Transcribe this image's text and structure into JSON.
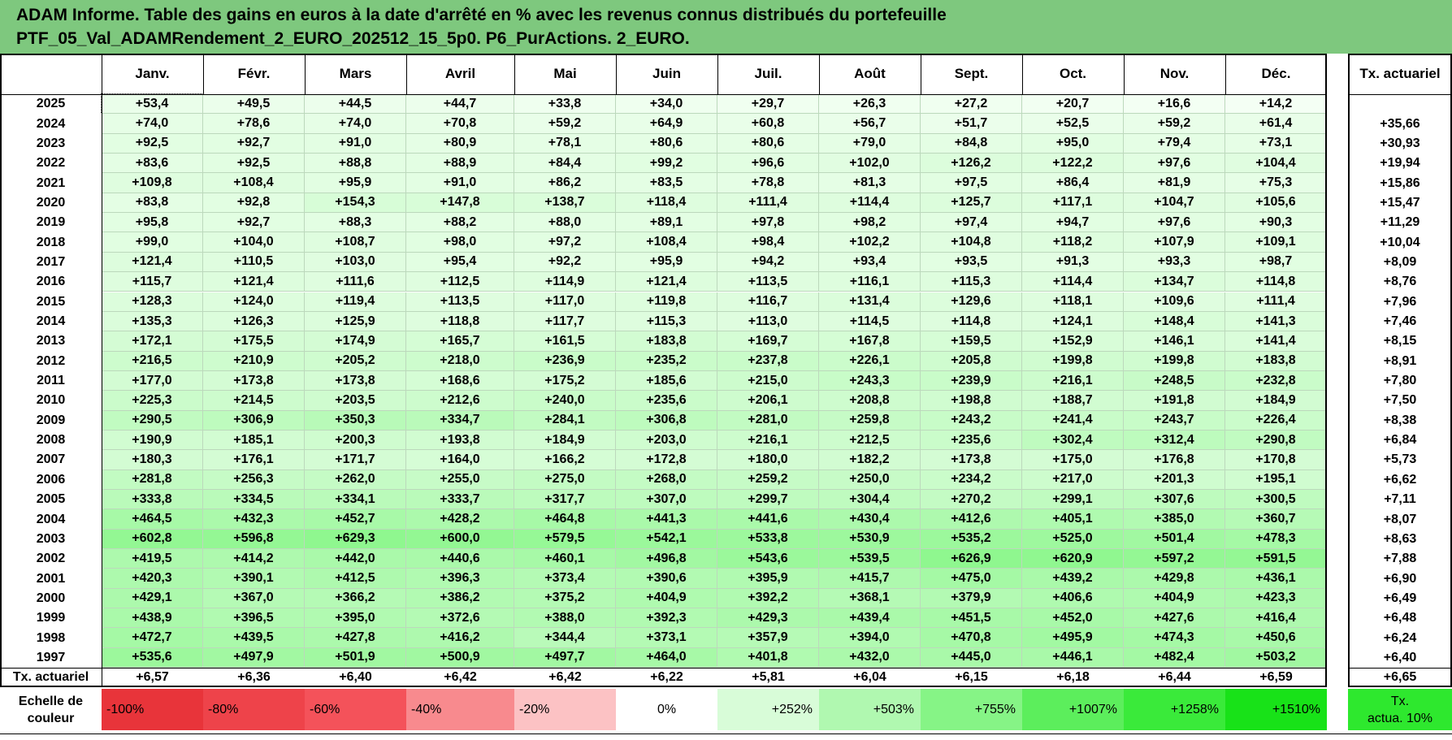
{
  "title": {
    "line1": "ADAM Informe. Table des gains en euros à la date d'arrêté en % avec les revenus connus distribués du portefeuille",
    "line2": "PTF_05_Val_ADAMRendement_2_EURO_202512_15_5p0. P6_PurActions. 2_EURO."
  },
  "table": {
    "months": [
      "Janv.",
      "Févr.",
      "Mars",
      "Avril",
      "Mai",
      "Juin",
      "Juil.",
      "Août",
      "Sept.",
      "Oct.",
      "Nov.",
      "Déc."
    ],
    "actuarial_header": "Tx. actuariel",
    "rows": [
      {
        "year": "2025",
        "values": [
          "+53,4",
          "+49,5",
          "+44,5",
          "+44,7",
          "+33,8",
          "+34,0",
          "+29,7",
          "+26,3",
          "+27,2",
          "+20,7",
          "+16,6",
          "+14,2"
        ],
        "rate": ""
      },
      {
        "year": "2024",
        "values": [
          "+74,0",
          "+78,6",
          "+74,0",
          "+70,8",
          "+59,2",
          "+64,9",
          "+60,8",
          "+56,7",
          "+51,7",
          "+52,5",
          "+59,2",
          "+61,4"
        ],
        "rate": "+35,66"
      },
      {
        "year": "2023",
        "values": [
          "+92,5",
          "+92,7",
          "+91,0",
          "+80,9",
          "+78,1",
          "+80,6",
          "+80,6",
          "+79,0",
          "+84,8",
          "+95,0",
          "+79,4",
          "+73,1"
        ],
        "rate": "+30,93"
      },
      {
        "year": "2022",
        "values": [
          "+83,6",
          "+92,5",
          "+88,8",
          "+88,9",
          "+84,4",
          "+99,2",
          "+96,6",
          "+102,0",
          "+126,2",
          "+122,2",
          "+97,6",
          "+104,4"
        ],
        "rate": "+19,94"
      },
      {
        "year": "2021",
        "values": [
          "+109,8",
          "+108,4",
          "+95,9",
          "+91,0",
          "+86,2",
          "+83,5",
          "+78,8",
          "+81,3",
          "+97,5",
          "+86,4",
          "+81,9",
          "+75,3"
        ],
        "rate": "+15,86"
      },
      {
        "year": "2020",
        "values": [
          "+83,8",
          "+92,8",
          "+154,3",
          "+147,8",
          "+138,7",
          "+118,4",
          "+111,4",
          "+114,4",
          "+125,7",
          "+117,1",
          "+104,7",
          "+105,6"
        ],
        "rate": "+15,47"
      },
      {
        "year": "2019",
        "values": [
          "+95,8",
          "+92,7",
          "+88,3",
          "+88,2",
          "+88,0",
          "+89,1",
          "+97,8",
          "+98,2",
          "+97,4",
          "+94,7",
          "+97,6",
          "+90,3"
        ],
        "rate": "+11,29"
      },
      {
        "year": "2018",
        "values": [
          "+99,0",
          "+104,0",
          "+108,7",
          "+98,0",
          "+97,2",
          "+108,4",
          "+98,4",
          "+102,2",
          "+104,8",
          "+118,2",
          "+107,9",
          "+109,1"
        ],
        "rate": "+10,04"
      },
      {
        "year": "2017",
        "values": [
          "+121,4",
          "+110,5",
          "+103,0",
          "+95,4",
          "+92,2",
          "+95,9",
          "+94,2",
          "+93,4",
          "+93,5",
          "+91,3",
          "+93,3",
          "+98,7"
        ],
        "rate": "+8,09"
      },
      {
        "year": "2016",
        "values": [
          "+115,7",
          "+121,4",
          "+111,6",
          "+112,5",
          "+114,9",
          "+121,4",
          "+113,5",
          "+116,1",
          "+115,3",
          "+114,4",
          "+134,7",
          "+114,8"
        ],
        "rate": "+8,76"
      },
      {
        "year": "2015",
        "values": [
          "+128,3",
          "+124,0",
          "+119,4",
          "+113,5",
          "+117,0",
          "+119,8",
          "+116,7",
          "+131,4",
          "+129,6",
          "+118,1",
          "+109,6",
          "+111,4"
        ],
        "rate": "+7,96"
      },
      {
        "year": "2014",
        "values": [
          "+135,3",
          "+126,3",
          "+125,9",
          "+118,8",
          "+117,7",
          "+115,3",
          "+113,0",
          "+114,5",
          "+114,8",
          "+124,1",
          "+148,4",
          "+141,3"
        ],
        "rate": "+7,46"
      },
      {
        "year": "2013",
        "values": [
          "+172,1",
          "+175,5",
          "+174,9",
          "+165,7",
          "+161,5",
          "+183,8",
          "+169,7",
          "+167,8",
          "+159,5",
          "+152,9",
          "+146,1",
          "+141,4"
        ],
        "rate": "+8,15"
      },
      {
        "year": "2012",
        "values": [
          "+216,5",
          "+210,9",
          "+205,2",
          "+218,0",
          "+236,9",
          "+235,2",
          "+237,8",
          "+226,1",
          "+205,8",
          "+199,8",
          "+199,8",
          "+183,8"
        ],
        "rate": "+8,91"
      },
      {
        "year": "2011",
        "values": [
          "+177,0",
          "+173,8",
          "+173,8",
          "+168,6",
          "+175,2",
          "+185,6",
          "+215,0",
          "+243,3",
          "+239,9",
          "+216,1",
          "+248,5",
          "+232,8"
        ],
        "rate": "+7,80"
      },
      {
        "year": "2010",
        "values": [
          "+225,3",
          "+214,5",
          "+203,5",
          "+212,6",
          "+240,0",
          "+235,6",
          "+206,1",
          "+208,8",
          "+198,8",
          "+188,7",
          "+191,8",
          "+184,9"
        ],
        "rate": "+7,50"
      },
      {
        "year": "2009",
        "values": [
          "+290,5",
          "+306,9",
          "+350,3",
          "+334,7",
          "+284,1",
          "+306,8",
          "+281,0",
          "+259,8",
          "+243,2",
          "+241,4",
          "+243,7",
          "+226,4"
        ],
        "rate": "+8,38"
      },
      {
        "year": "2008",
        "values": [
          "+190,9",
          "+185,1",
          "+200,3",
          "+193,8",
          "+184,9",
          "+203,0",
          "+216,1",
          "+212,5",
          "+235,6",
          "+302,4",
          "+312,4",
          "+290,8"
        ],
        "rate": "+6,84"
      },
      {
        "year": "2007",
        "values": [
          "+180,3",
          "+176,1",
          "+171,7",
          "+164,0",
          "+166,2",
          "+172,8",
          "+180,0",
          "+182,2",
          "+173,8",
          "+175,0",
          "+176,8",
          "+170,8"
        ],
        "rate": "+5,73"
      },
      {
        "year": "2006",
        "values": [
          "+281,8",
          "+256,3",
          "+262,0",
          "+255,0",
          "+275,0",
          "+268,0",
          "+259,2",
          "+250,0",
          "+234,2",
          "+217,0",
          "+201,3",
          "+195,1"
        ],
        "rate": "+6,62"
      },
      {
        "year": "2005",
        "values": [
          "+333,8",
          "+334,5",
          "+334,1",
          "+333,7",
          "+317,7",
          "+307,0",
          "+299,7",
          "+304,4",
          "+270,2",
          "+299,1",
          "+307,6",
          "+300,5"
        ],
        "rate": "+7,11"
      },
      {
        "year": "2004",
        "values": [
          "+464,5",
          "+432,3",
          "+452,7",
          "+428,2",
          "+464,8",
          "+441,3",
          "+441,6",
          "+430,4",
          "+412,6",
          "+405,1",
          "+385,0",
          "+360,7"
        ],
        "rate": "+8,07"
      },
      {
        "year": "2003",
        "values": [
          "+602,8",
          "+596,8",
          "+629,3",
          "+600,0",
          "+579,5",
          "+542,1",
          "+533,8",
          "+530,9",
          "+535,2",
          "+525,0",
          "+501,4",
          "+478,3"
        ],
        "rate": "+8,63"
      },
      {
        "year": "2002",
        "values": [
          "+419,5",
          "+414,2",
          "+442,0",
          "+440,6",
          "+460,1",
          "+496,8",
          "+543,6",
          "+539,5",
          "+626,9",
          "+620,9",
          "+597,2",
          "+591,5"
        ],
        "rate": "+7,88"
      },
      {
        "year": "2001",
        "values": [
          "+420,3",
          "+390,1",
          "+412,5",
          "+396,3",
          "+373,4",
          "+390,6",
          "+395,9",
          "+415,7",
          "+475,0",
          "+439,2",
          "+429,8",
          "+436,1"
        ],
        "rate": "+6,90"
      },
      {
        "year": "2000",
        "values": [
          "+429,1",
          "+367,0",
          "+366,2",
          "+386,2",
          "+375,2",
          "+404,9",
          "+392,2",
          "+368,1",
          "+379,9",
          "+406,6",
          "+404,9",
          "+423,3"
        ],
        "rate": "+6,49"
      },
      {
        "year": "1999",
        "values": [
          "+438,9",
          "+396,5",
          "+395,0",
          "+372,6",
          "+388,0",
          "+392,3",
          "+429,3",
          "+439,4",
          "+451,5",
          "+452,0",
          "+427,6",
          "+416,4"
        ],
        "rate": "+6,48"
      },
      {
        "year": "1998",
        "values": [
          "+472,7",
          "+439,5",
          "+427,8",
          "+416,2",
          "+344,4",
          "+373,1",
          "+357,9",
          "+394,0",
          "+470,8",
          "+495,9",
          "+474,3",
          "+450,6"
        ],
        "rate": "+6,24"
      },
      {
        "year": "1997",
        "values": [
          "+535,6",
          "+497,9",
          "+501,9",
          "+500,9",
          "+497,7",
          "+464,0",
          "+401,8",
          "+432,0",
          "+445,0",
          "+446,1",
          "+482,4",
          "+503,2"
        ],
        "rate": "+6,40"
      }
    ],
    "footer": {
      "label": "Tx. actuariel",
      "values": [
        "+6,57",
        "+6,36",
        "+6,40",
        "+6,42",
        "+6,42",
        "+6,22",
        "+5,81",
        "+6,04",
        "+6,15",
        "+6,18",
        "+6,44",
        "+6,59"
      ],
      "rate": "+6,65"
    }
  },
  "legend": {
    "label_line1": "Echelle de",
    "label_line2": "couleur",
    "items": [
      {
        "text": "-100%",
        "color": "#e8343a"
      },
      {
        "text": "-80%",
        "color": "#ee434a"
      },
      {
        "text": "-60%",
        "color": "#f4525a"
      },
      {
        "text": "-40%",
        "color": "#f88a8e"
      },
      {
        "text": "-20%",
        "color": "#fcc2c4"
      },
      {
        "text": "0%",
        "color": "#ffffff"
      },
      {
        "text": "+252%",
        "color": "#d8fcd8"
      },
      {
        "text": "+503%",
        "color": "#b0f8b0"
      },
      {
        "text": "+755%",
        "color": "#86f486"
      },
      {
        "text": "+1007%",
        "color": "#5cee5c"
      },
      {
        "text": "+1258%",
        "color": "#3aea3a"
      },
      {
        "text": "+1510%",
        "color": "#18e218"
      }
    ],
    "rate_line1": "Tx.",
    "rate_line2": "actua. 10%",
    "rate_color": "#2ee82e"
  },
  "colors": {
    "title_bg": "#7ec87e",
    "cell_light": "#f4fff4",
    "cell_dark": "#8ff78f"
  }
}
